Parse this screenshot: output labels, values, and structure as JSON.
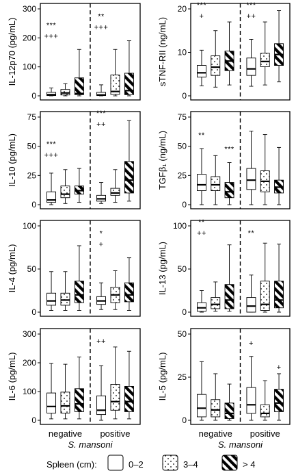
{
  "legend": {
    "title": "Spleen (cm):",
    "items": [
      {
        "label": "0–2",
        "pattern": "plain"
      },
      {
        "label": "3–4",
        "pattern": "dots"
      },
      {
        "label": "> 4",
        "pattern": "stripes"
      }
    ]
  },
  "x_axis": {
    "groups": [
      "negative",
      "positive"
    ],
    "title": "S. mansoni"
  },
  "chart_data": [
    {
      "type": "box",
      "ylabel": "IL-12p70 (pg/mL)",
      "ylim": [
        0,
        300
      ],
      "yticks": [
        "0",
        "100",
        "200",
        "300"
      ],
      "groups": [
        {
          "name": "negative",
          "annotation": [
            "***",
            "+++"
          ],
          "boxes": [
            {
              "spleen": "0–2",
              "min": 0,
              "q1": 1,
              "median": 4,
              "q3": 12,
              "max": 27
            },
            {
              "spleen": "3–4",
              "min": 0,
              "q1": 3,
              "median": 10,
              "q3": 22,
              "max": 42
            },
            {
              "spleen": "> 4",
              "min": 0,
              "q1": 4,
              "median": 8,
              "q3": 62,
              "max": 160
            }
          ]
        },
        {
          "name": "positive",
          "annotation": [
            "**",
            "+++"
          ],
          "boxes": [
            {
              "spleen": "0–2",
              "min": 0,
              "q1": 1,
              "median": 3,
              "q3": 12,
              "max": 38
            },
            {
              "spleen": "3–4",
              "min": 0,
              "q1": 5,
              "median": 15,
              "q3": 72,
              "max": 160
            },
            {
              "spleen": "> 4",
              "min": 0,
              "q1": 4,
              "median": 18,
              "q3": 78,
              "max": 190
            }
          ]
        }
      ]
    },
    {
      "type": "box",
      "ylabel": "sTNF-RII (ng/mL)",
      "ylim": [
        0,
        20
      ],
      "yticks": [
        "0",
        "10",
        "20"
      ],
      "groups": [
        {
          "name": "negative",
          "annotation": [
            "***",
            "+"
          ],
          "boxes": [
            {
              "spleen": "0–2",
              "min": 2.3,
              "q1": 4.3,
              "median": 5.3,
              "q3": 7.0,
              "max": 10.5
            },
            {
              "spleen": "3–4",
              "min": 2.0,
              "q1": 4.7,
              "median": 6.6,
              "q3": 9.2,
              "max": 15.0
            },
            {
              "spleen": "> 4",
              "min": 2.5,
              "q1": 5.8,
              "median": 8.0,
              "q3": 10.3,
              "max": 17.0
            }
          ]
        },
        {
          "name": "positive",
          "annotation": [
            "***",
            "++"
          ],
          "boxes": [
            {
              "spleen": "0–2",
              "min": 2.2,
              "q1": 4.7,
              "median": 6.2,
              "q3": 8.7,
              "max": 13.0
            },
            {
              "spleen": "3–4",
              "min": 2.5,
              "q1": 6.7,
              "median": 7.9,
              "q3": 9.8,
              "max": 17.0
            },
            {
              "spleen": "> 4",
              "min": 3.2,
              "q1": 7.0,
              "median": 9.5,
              "q3": 12.0,
              "max": 19.6
            }
          ]
        }
      ]
    },
    {
      "type": "box",
      "ylabel": "IL-10 (pg/mL)",
      "ylim": [
        0,
        75
      ],
      "yticks": [
        "0",
        "25",
        "50",
        "75"
      ],
      "groups": [
        {
          "name": "negative",
          "annotation": [
            "***",
            "+++"
          ],
          "boxes": [
            {
              "spleen": "0–2",
              "min": 0,
              "q1": 2,
              "median": 4,
              "q3": 11,
              "max": 27
            },
            {
              "spleen": "3–4",
              "min": 1,
              "q1": 6,
              "median": 9,
              "q3": 16,
              "max": 30
            },
            {
              "spleen": "> 4",
              "min": 2,
              "q1": 9,
              "median": 12,
              "q3": 16,
              "max": 31
            }
          ]
        },
        {
          "name": "positive",
          "annotation": [
            "***",
            "++"
          ],
          "boxes": [
            {
              "spleen": "0–2",
              "min": 1,
              "q1": 3,
              "median": 5,
              "q3": 8,
              "max": 19
            },
            {
              "spleen": "3–4",
              "min": 2,
              "q1": 8,
              "median": 10,
              "q3": 14,
              "max": 30
            },
            {
              "spleen": "> 4",
              "min": 3,
              "q1": 10,
              "median": 21,
              "q3": 37,
              "max": 72
            }
          ]
        }
      ]
    },
    {
      "type": "box",
      "ylabel": "TGFβ₁ (ng/mL)",
      "ylim": [
        0,
        75
      ],
      "yticks": [
        "0",
        "25",
        "50",
        "75"
      ],
      "groups": [
        {
          "name": "negative",
          "annotation": [
            "**",
            ""
          ],
          "boxes": [
            {
              "spleen": "0–2",
              "min": 0,
              "q1": 12,
              "median": 17,
              "q3": 26,
              "max": 48
            },
            {
              "spleen": "3–4",
              "min": 0,
              "q1": 12,
              "median": 17,
              "q3": 24,
              "max": 42
            }
          ]
        },
        {
          "name": "negative",
          "annotation": [
            "***",
            ""
          ],
          "boxes": [
            {
              "spleen": "> 4",
              "min": 0,
              "q1": 6,
              "median": 11,
              "q3": 19,
              "max": 36
            }
          ]
        },
        {
          "name": "positive",
          "annotation": [
            "",
            ""
          ],
          "boxes": [
            {
              "spleen": "0–2",
              "min": 0,
              "q1": 13,
              "median": 21,
              "q3": 31,
              "max": 63
            },
            {
              "spleen": "3–4",
              "min": 0,
              "q1": 11,
              "median": 20,
              "q3": 29,
              "max": 60
            },
            {
              "spleen": "> 4",
              "min": 0,
              "q1": 10,
              "median": 15,
              "q3": 21,
              "max": 49
            }
          ]
        }
      ]
    },
    {
      "type": "box",
      "ylabel": "IL-4 (pg/mL)",
      "ylim": [
        0,
        100
      ],
      "yticks": [
        "0",
        "50",
        "100"
      ],
      "groups": [
        {
          "name": "negative",
          "annotation": [
            "",
            ""
          ],
          "boxes": [
            {
              "spleen": "0–2",
              "min": 2,
              "q1": 8,
              "median": 13,
              "q3": 22,
              "max": 47
            },
            {
              "spleen": "3–4",
              "min": 2,
              "q1": 8,
              "median": 14,
              "q3": 22,
              "max": 47
            },
            {
              "spleen": "> 4",
              "min": 2,
              "q1": 11,
              "median": 20,
              "q3": 36,
              "max": 77
            }
          ]
        },
        {
          "name": "positive",
          "annotation": [
            "*",
            "+"
          ],
          "boxes": [
            {
              "spleen": "0–2",
              "min": 3,
              "q1": 9,
              "median": 13,
              "q3": 18,
              "max": 34
            },
            {
              "spleen": "3–4",
              "min": 3,
              "q1": 11,
              "median": 20,
              "q3": 29,
              "max": 48
            },
            {
              "spleen": "> 4",
              "min": 2,
              "q1": 12,
              "median": 20,
              "q3": 34,
              "max": 63
            }
          ]
        }
      ]
    },
    {
      "type": "box",
      "ylabel": "IL-13 (pg/mL)",
      "ylim": [
        0,
        100
      ],
      "yticks": [
        "0",
        "50",
        "100"
      ],
      "groups": [
        {
          "name": "negative",
          "annotation": [
            "**",
            "++"
          ],
          "boxes": [
            {
              "spleen": "0–2",
              "min": 0,
              "q1": 1,
              "median": 5,
              "q3": 11,
              "max": 25
            },
            {
              "spleen": "3–4",
              "min": 1,
              "q1": 4,
              "median": 9,
              "q3": 17,
              "max": 35
            },
            {
              "spleen": "> 4",
              "min": 1,
              "q1": 4,
              "median": 14,
              "q3": 32,
              "max": 78
            }
          ]
        },
        {
          "name": "positive",
          "annotation": [
            "**",
            ""
          ],
          "boxes": [
            {
              "spleen": "0–2",
              "min": 0,
              "q1": 0,
              "median": 7,
              "q3": 17,
              "max": 43
            },
            {
              "spleen": "3–4",
              "min": 0,
              "q1": 2,
              "median": 9,
              "q3": 36,
              "max": 80
            },
            {
              "spleen": "> 4",
              "min": 0,
              "q1": 5,
              "median": 14,
              "q3": 36,
              "max": 79
            }
          ]
        }
      ]
    },
    {
      "type": "box",
      "ylabel": "IL-6 (pg/mL)",
      "ylim": [
        0,
        300
      ],
      "yticks": [
        "0",
        "100",
        "200",
        "300"
      ],
      "groups": [
        {
          "name": "negative",
          "annotation": [
            "",
            ""
          ],
          "boxes": [
            {
              "spleen": "0–2",
              "min": 5,
              "q1": 25,
              "median": 48,
              "q3": 95,
              "max": 198
            },
            {
              "spleen": "3–4",
              "min": 5,
              "q1": 25,
              "median": 50,
              "q3": 98,
              "max": 195
            },
            {
              "spleen": "> 4",
              "min": 5,
              "q1": 30,
              "median": 57,
              "q3": 110,
              "max": 220
            }
          ]
        },
        {
          "name": "positive",
          "annotation": [
            "++",
            ""
          ],
          "boxes": [
            {
              "spleen": "0–2",
              "min": 0,
              "q1": 20,
              "median": 35,
              "q3": 85,
              "max": 190
            },
            {
              "spleen": "3–4",
              "min": 5,
              "q1": 35,
              "median": 65,
              "q3": 125,
              "max": 255
            },
            {
              "spleen": "> 4",
              "min": 5,
              "q1": 30,
              "median": 65,
              "q3": 118,
              "max": 240
            }
          ]
        }
      ]
    },
    {
      "type": "box",
      "ylabel": "IL-5 (pg/mL)",
      "ylim": [
        0,
        50
      ],
      "yticks": [
        "0",
        "25",
        "50"
      ],
      "groups": [
        {
          "name": "negative",
          "annotation": [
            "",
            ""
          ],
          "boxes": [
            {
              "spleen": "0–2",
              "min": 0,
              "q1": 2,
              "median": 7,
              "q3": 15,
              "max": 34
            },
            {
              "spleen": "3–4",
              "min": 0,
              "q1": 2,
              "median": 6,
              "q3": 12,
              "max": 27
            },
            {
              "spleen": "> 4",
              "min": 0,
              "q1": 1,
              "median": 4,
              "q3": 10,
              "max": 21
            }
          ]
        },
        {
          "name": "positive",
          "annotation": [
            "+",
            ""
          ],
          "boxes": [
            {
              "spleen": "0–2",
              "min": 0,
              "q1": 4,
              "median": 9,
              "q3": 19,
              "max": 37
            },
            {
              "spleen": "3–4",
              "min": 0,
              "q1": 2,
              "median": 4,
              "q3": 9,
              "max": 23
            },
            {
              "spleen": "> 4",
              "min": 0,
              "q1": 5,
              "median": 10,
              "q3": 18,
              "max": 27,
              "annotation_above": "+"
            }
          ]
        }
      ]
    }
  ]
}
